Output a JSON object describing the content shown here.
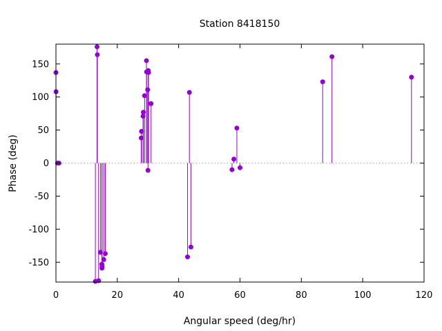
{
  "chart_data": {
    "type": "scatter",
    "style": "impulses-with-points",
    "title": "Station 8418150",
    "xlabel": "Angular speed (deg/hr)",
    "ylabel": "Phase (deg)",
    "xlim": [
      0,
      120
    ],
    "ylim": [
      -180,
      180
    ],
    "xticks": [
      0,
      20,
      40,
      60,
      80,
      100,
      120
    ],
    "yticks": [
      -150,
      -100,
      -50,
      0,
      50,
      100,
      150
    ],
    "zero_line": true,
    "color": "#9400d3",
    "points": [
      {
        "x": 0.0,
        "y": 137
      },
      {
        "x": 0.04,
        "y": 108
      },
      {
        "x": 0.5,
        "y": 0
      },
      {
        "x": 1.0,
        "y": 0
      },
      {
        "x": 12.85,
        "y": -179
      },
      {
        "x": 13.4,
        "y": 176
      },
      {
        "x": 13.5,
        "y": 164
      },
      {
        "x": 13.9,
        "y": -178
      },
      {
        "x": 14.5,
        "y": -135
      },
      {
        "x": 14.96,
        "y": -153
      },
      {
        "x": 15.0,
        "y": -159
      },
      {
        "x": 15.04,
        "y": -156
      },
      {
        "x": 15.6,
        "y": -146
      },
      {
        "x": 16.1,
        "y": -137
      },
      {
        "x": 27.8,
        "y": 38
      },
      {
        "x": 27.9,
        "y": 48
      },
      {
        "x": 28.4,
        "y": 71
      },
      {
        "x": 28.5,
        "y": 77
      },
      {
        "x": 28.9,
        "y": 102
      },
      {
        "x": 29.5,
        "y": 155
      },
      {
        "x": 29.55,
        "y": 138
      },
      {
        "x": 29.9,
        "y": 111
      },
      {
        "x": 30.0,
        "y": -11
      },
      {
        "x": 30.1,
        "y": 140
      },
      {
        "x": 30.2,
        "y": 137
      },
      {
        "x": 31.0,
        "y": 90
      },
      {
        "x": 42.9,
        "y": -142
      },
      {
        "x": 43.5,
        "y": 107
      },
      {
        "x": 44.0,
        "y": -127
      },
      {
        "x": 57.4,
        "y": -10
      },
      {
        "x": 58.0,
        "y": 6
      },
      {
        "x": 58.98,
        "y": 53
      },
      {
        "x": 60.0,
        "y": -7
      },
      {
        "x": 86.95,
        "y": 123
      },
      {
        "x": 89.98,
        "y": 161
      },
      {
        "x": 115.9,
        "y": 130
      }
    ]
  }
}
